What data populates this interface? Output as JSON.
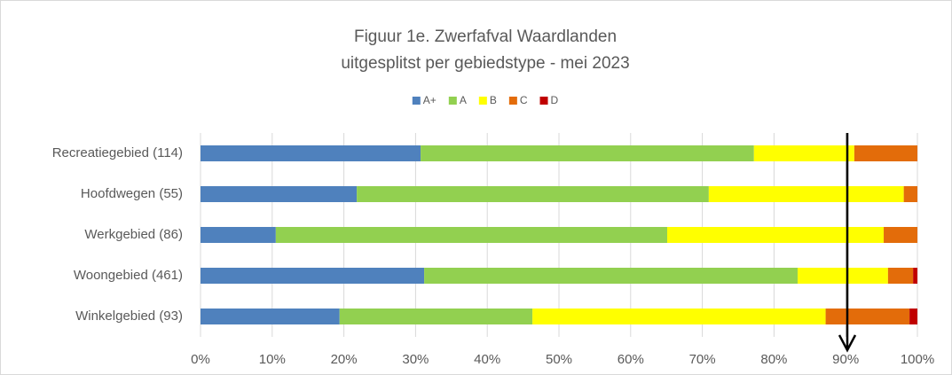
{
  "chart_data": {
    "type": "stacked_barh",
    "title": "Figuur 1e. Zwerfafval Waardlanden",
    "subtitle": "uitgesplitst per gebiedstype - mei 2023",
    "categories": [
      "Recreatiegebied (114)",
      "Hoofdwegen (55)",
      "Werkgebied (86)",
      "Woongebied (461)",
      "Winkelgebied (93)"
    ],
    "series": [
      {
        "name": "A+",
        "color": "#4f81bd",
        "values": [
          30.7,
          21.8,
          10.5,
          31.2,
          19.4
        ]
      },
      {
        "name": "A",
        "color": "#92d050",
        "values": [
          46.5,
          49.1,
          54.6,
          52.1,
          26.9
        ]
      },
      {
        "name": "B",
        "color": "#ffff00",
        "values": [
          14.0,
          27.2,
          30.2,
          12.6,
          40.9
        ]
      },
      {
        "name": "C",
        "color": "#e36c0a",
        "values": [
          8.8,
          1.9,
          4.7,
          3.5,
          11.7
        ]
      },
      {
        "name": "D",
        "color": "#c00000",
        "values": [
          0,
          0,
          0,
          0.6,
          1.1
        ]
      }
    ],
    "xlim": [
      0,
      100
    ],
    "xticks": [
      {
        "value": 0,
        "label": "0%"
      },
      {
        "value": 10,
        "label": "10%"
      },
      {
        "value": 20,
        "label": "20%"
      },
      {
        "value": 30,
        "label": "30%"
      },
      {
        "value": 40,
        "label": "40%"
      },
      {
        "value": 50,
        "label": "50%"
      },
      {
        "value": 60,
        "label": "60%"
      },
      {
        "value": 70,
        "label": "70%"
      },
      {
        "value": 80,
        "label": "80%"
      },
      {
        "value": 90,
        "label": "90%"
      },
      {
        "value": 100,
        "label": "100%"
      }
    ],
    "grid": true,
    "legend": "top"
  }
}
